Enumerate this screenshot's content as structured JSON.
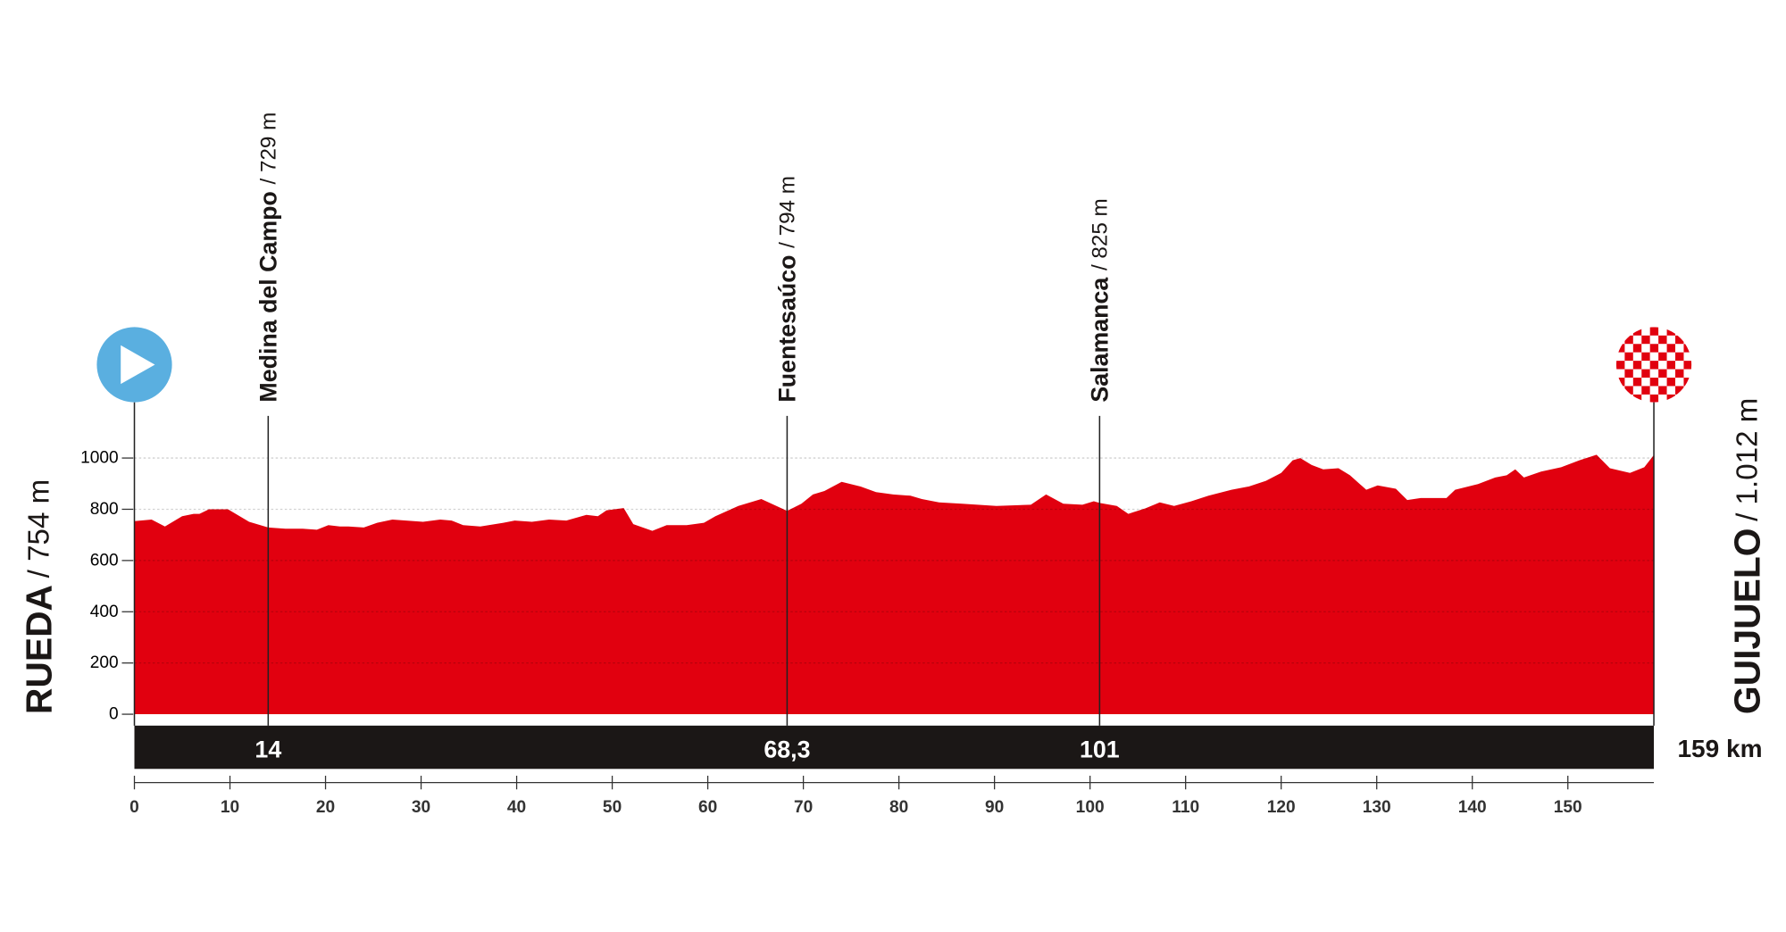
{
  "chart_data": {
    "type": "area",
    "color": "#e1000f",
    "bar_color": "#1b1716",
    "start": {
      "name": "RUEDA",
      "label": "/ 754 m"
    },
    "finish": {
      "name": "GUIJUELO",
      "label": "/ 1.012 m"
    },
    "total": {
      "value": 159,
      "label": "159 km"
    },
    "waypoints": [
      {
        "name": "Medina del Campo",
        "label": "/ 729 m",
        "km": {
          "value": 14,
          "label": "14"
        }
      },
      {
        "name": "Fuentesaúco",
        "label": "/ 794 m",
        "km": {
          "value": 68.3,
          "label": "68,3"
        }
      },
      {
        "name": "Salamanca",
        "label": "/ 825 m",
        "km": {
          "value": 101,
          "label": "101"
        }
      }
    ],
    "x": [
      0,
      1.8,
      3.2,
      5,
      6.2,
      6.8,
      7.8,
      9.8,
      12,
      14,
      15.8,
      17.6,
      19.1,
      20.3,
      21.5,
      22.4,
      24,
      25.4,
      27,
      30.2,
      32,
      33.2,
      34.4,
      36.2,
      38.6,
      39.8,
      41.6,
      43.4,
      45.2,
      47.3,
      48.5,
      49.4,
      51.2,
      52.2,
      54.2,
      55.7,
      57.8,
      59.6,
      60.8,
      63.2,
      65.6,
      68.3,
      69.8,
      71,
      72.2,
      74,
      76,
      77.6,
      79.4,
      81.2,
      82.4,
      84.2,
      86.6,
      90.2,
      93.8,
      95.4,
      97.2,
      99.2,
      100.4,
      101,
      102.8,
      104,
      105.8,
      107.3,
      108.8,
      110.6,
      112.4,
      114.8,
      116.6,
      118.4,
      120,
      121.2,
      122,
      123.2,
      124.4,
      126,
      127.2,
      128.9,
      130.1,
      132,
      133.2,
      134.6,
      137.3,
      138.2,
      140.6,
      142.4,
      143.6,
      144.5,
      145.4,
      147.2,
      149.3,
      151.2,
      153,
      154.4,
      156.5,
      158,
      159
    ],
    "values": [
      754,
      760,
      733,
      773,
      782,
      782,
      800,
      800,
      751,
      729,
      724,
      724,
      720,
      738,
      733,
      733,
      729,
      747,
      760,
      751,
      760,
      756,
      738,
      733,
      747,
      756,
      751,
      760,
      756,
      778,
      773,
      796,
      805,
      742,
      716,
      738,
      738,
      747,
      773,
      813,
      840,
      794,
      822,
      858,
      871,
      907,
      889,
      867,
      858,
      853,
      840,
      827,
      822,
      813,
      818,
      858,
      822,
      818,
      831,
      825,
      813,
      782,
      804,
      827,
      813,
      831,
      853,
      876,
      889,
      911,
      942,
      991,
      1000,
      973,
      956,
      960,
      933,
      876,
      893,
      880,
      836,
      844,
      844,
      876,
      898,
      924,
      933,
      956,
      924,
      947,
      964,
      991,
      1013,
      960,
      942,
      964,
      1012
    ],
    "xlim": [
      0,
      159
    ],
    "ylim": [
      0,
      1000
    ],
    "xticks": [
      0,
      10,
      20,
      30,
      40,
      50,
      60,
      70,
      80,
      90,
      100,
      110,
      120,
      130,
      140,
      150
    ],
    "yticks": [
      0,
      200,
      400,
      600,
      800,
      1000
    ],
    "grid": true
  }
}
